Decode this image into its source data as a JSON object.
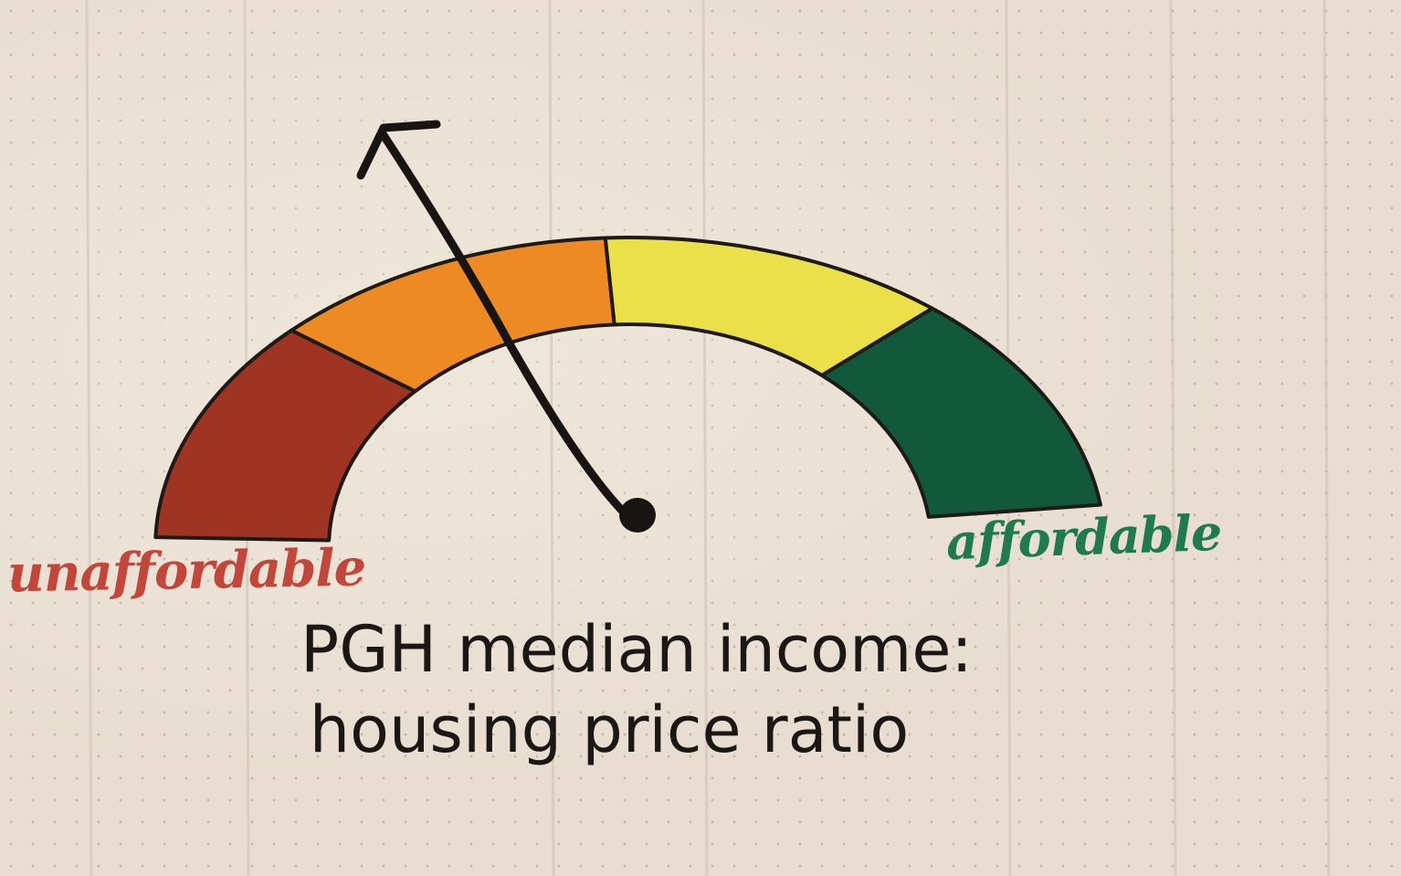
{
  "gauge": {
    "segments": [
      {
        "name": "red",
        "color": "#9e3421"
      },
      {
        "name": "orange",
        "color": "#ee8a23"
      },
      {
        "name": "yellow",
        "color": "#ece04a"
      },
      {
        "name": "green",
        "color": "#12583a"
      }
    ],
    "low_label": "unaffordable",
    "high_label": "affordable",
    "low_color": "#c2473a",
    "high_color": "#1f7a4f",
    "needle_color": "#171411"
  },
  "caption": {
    "line1": "PGH median income:",
    "line2": "housing price ratio"
  }
}
